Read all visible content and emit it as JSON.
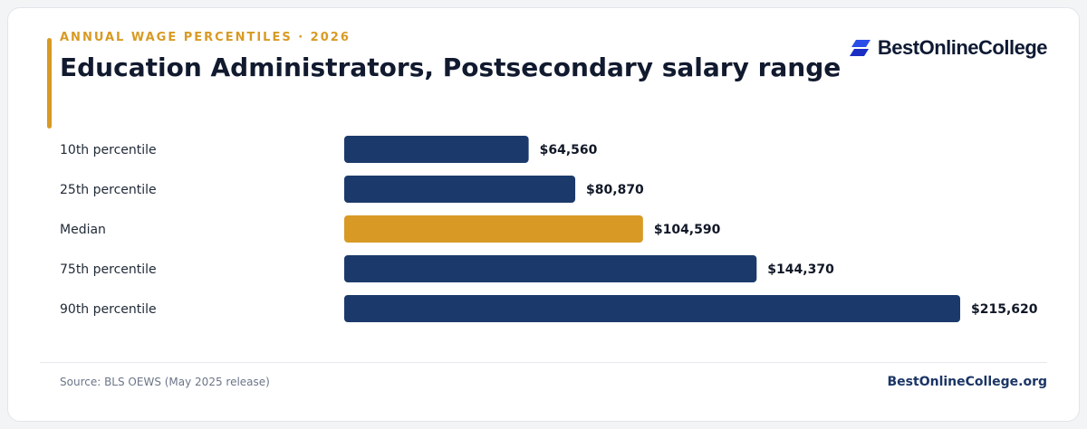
{
  "header": {
    "eyebrow": "ANNUAL WAGE PERCENTILES · 2026",
    "title": "Education Administrators, Postsecondary salary range"
  },
  "logo": {
    "text": "BestOnlineCollege",
    "icon": "stacked-parallelogram-logo-icon",
    "color": "#2b4ee8"
  },
  "footer": {
    "source": "Source: BLS OEWS (May 2025 release)",
    "site": "BestOnlineCollege.org"
  },
  "colors": {
    "bar": "#1b3a6b",
    "highlight": "#d89a24",
    "accent": "#d89a24"
  },
  "chart_data": {
    "type": "bar",
    "orientation": "horizontal",
    "categories": [
      "10th percentile",
      "25th percentile",
      "Median",
      "75th percentile",
      "90th percentile"
    ],
    "values": [
      64560,
      80870,
      104590,
      144370,
      215620
    ],
    "value_labels": [
      "$64,560",
      "$80,870",
      "$104,590",
      "$144,370",
      "$215,620"
    ],
    "highlight_index": 2,
    "xlim": [
      0,
      215620
    ],
    "grid": false,
    "legend": "none"
  }
}
